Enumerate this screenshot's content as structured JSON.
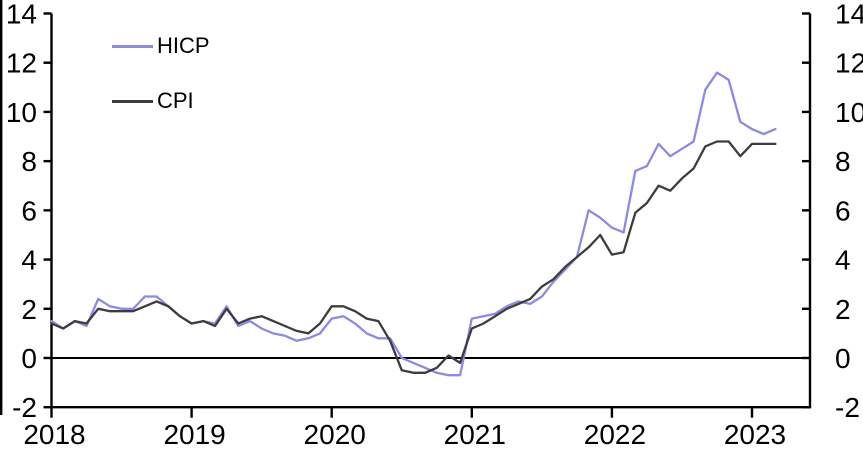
{
  "chart": {
    "background_color": "#ffffff",
    "axis_color": "#000000",
    "legend": {
      "position": "top-left",
      "items": [
        {
          "label": "HICP",
          "color": "#8c89e8"
        },
        {
          "label": "CPI",
          "color": "#3d3d3d"
        }
      ]
    }
  },
  "chart_data": {
    "type": "line",
    "title": "",
    "xlabel": "",
    "ylabel": "",
    "frequency": "monthly",
    "x_start": "2018-01",
    "x_end": "2023-03",
    "x_tick_labels": [
      "2018",
      "2019",
      "2020",
      "2021",
      "2022",
      "2023"
    ],
    "y_ticks": [
      -2,
      0,
      2,
      4,
      6,
      8,
      10,
      12,
      14
    ],
    "ylim": [
      -2,
      14
    ],
    "dual_y_axis": true,
    "zero_line": true,
    "grid": false,
    "legend_position": "top-left",
    "series": [
      {
        "name": "HICP",
        "color": "#8c89e8",
        "values": [
          1.5,
          1.2,
          1.5,
          1.3,
          2.4,
          2.1,
          2.0,
          2.0,
          2.5,
          2.5,
          2.1,
          1.7,
          1.4,
          1.5,
          1.4,
          2.1,
          1.3,
          1.5,
          1.2,
          1.0,
          0.9,
          0.7,
          0.8,
          1.0,
          1.6,
          1.7,
          1.4,
          1.0,
          0.8,
          0.8,
          0.0,
          -0.2,
          -0.4,
          -0.6,
          -0.7,
          -0.7,
          1.6,
          1.7,
          1.8,
          2.1,
          2.3,
          2.2,
          2.5,
          3.1,
          3.6,
          4.1,
          6.0,
          5.7,
          5.3,
          5.1,
          7.6,
          7.8,
          8.7,
          8.2,
          8.5,
          8.8,
          10.9,
          11.6,
          11.3,
          9.6,
          9.3,
          9.1,
          9.3
        ]
      },
      {
        "name": "CPI",
        "color": "#3d3d3d",
        "values": [
          1.4,
          1.2,
          1.5,
          1.4,
          2.0,
          1.9,
          1.9,
          1.9,
          2.1,
          2.3,
          2.1,
          1.7,
          1.4,
          1.5,
          1.3,
          2.0,
          1.4,
          1.6,
          1.7,
          1.5,
          1.3,
          1.1,
          1.0,
          1.4,
          2.1,
          2.1,
          1.9,
          1.6,
          1.5,
          0.7,
          -0.5,
          -0.6,
          -0.6,
          -0.4,
          0.1,
          -0.2,
          1.2,
          1.4,
          1.7,
          2.0,
          2.2,
          2.4,
          2.9,
          3.2,
          3.7,
          4.1,
          4.5,
          5.0,
          4.2,
          4.3,
          5.9,
          6.3,
          7.0,
          6.8,
          7.3,
          7.7,
          8.6,
          8.8,
          8.8,
          8.2,
          8.7,
          8.7,
          8.7
        ]
      }
    ]
  }
}
